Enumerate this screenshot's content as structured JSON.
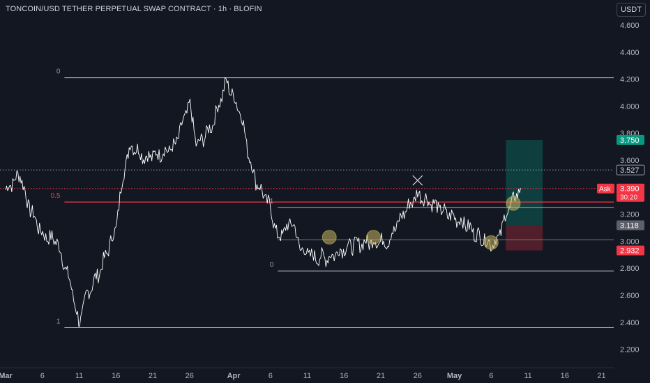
{
  "header": {
    "title": "TONCOIN/USD TETHER PERPETUAL SWAP CONTRACT · 1h · BLOFIN",
    "currency_button": "USDT"
  },
  "colors": {
    "background": "#131722",
    "price_line": "#ffffff",
    "level_line": "#b2b5be",
    "half_level": "#f23645",
    "take_profit": "#089981",
    "stop_loss": "#f23645",
    "ask": "#f23645",
    "highlight_circle": "#c8b560"
  },
  "chart_data": {
    "type": "line",
    "ylim": [
      2.15,
      4.7
    ],
    "y_ticks": [
      "4.600",
      "4.400",
      "4.200",
      "4.000",
      "3.800",
      "3.600",
      "3.400",
      "3.200",
      "3.000",
      "2.800",
      "2.600",
      "2.400",
      "2.200"
    ],
    "x_ticks": [
      "Mar",
      "6",
      "11",
      "16",
      "21",
      "26",
      "Apr",
      "6",
      "11",
      "16",
      "21",
      "26",
      "May",
      "6",
      "11",
      "16",
      "21"
    ],
    "x_ticks_bold": [
      "Mar",
      "Apr",
      "May"
    ],
    "price_series": {
      "x_start": "Mar 1",
      "x_end": "May 10",
      "anchors": [
        [
          "Mar 1",
          3.38
        ],
        [
          "Mar 3",
          3.5
        ],
        [
          "Mar 4",
          3.28
        ],
        [
          "Mar 6",
          3.05
        ],
        [
          "Mar 8",
          3.0
        ],
        [
          "Mar 10",
          2.65
        ],
        [
          "Mar 11",
          2.38
        ],
        [
          "Mar 12",
          2.6
        ],
        [
          "Mar 14",
          2.8
        ],
        [
          "Mar 16",
          3.1
        ],
        [
          "Mar 17",
          3.5
        ],
        [
          "Mar 18",
          3.72
        ],
        [
          "Mar 20",
          3.62
        ],
        [
          "Mar 22",
          3.65
        ],
        [
          "Mar 24",
          3.7
        ],
        [
          "Mar 26",
          4.02
        ],
        [
          "Mar 27",
          3.7
        ],
        [
          "Mar 29",
          3.85
        ],
        [
          "Mar 31",
          4.18
        ],
        [
          "Apr 2",
          3.95
        ],
        [
          "Apr 3",
          3.65
        ],
        [
          "Apr 4",
          3.45
        ],
        [
          "Apr 6",
          3.25
        ],
        [
          "Apr 7",
          3.02
        ],
        [
          "Apr 9",
          3.15
        ],
        [
          "Apr 10",
          2.95
        ],
        [
          "Apr 12",
          2.88
        ],
        [
          "Apr 14",
          2.88
        ],
        [
          "Apr 16",
          2.95
        ],
        [
          "Apr 18",
          2.98
        ],
        [
          "Apr 20",
          3.0
        ],
        [
          "Apr 22",
          3.0
        ],
        [
          "Apr 24",
          3.2
        ],
        [
          "Apr 26",
          3.35
        ],
        [
          "Apr 28",
          3.28
        ],
        [
          "Apr 30",
          3.2
        ],
        [
          "May 2",
          3.15
        ],
        [
          "May 4",
          3.05
        ],
        [
          "May 6",
          2.98
        ],
        [
          "May 7",
          3.02
        ],
        [
          "May 8",
          3.2
        ],
        [
          "May 9",
          3.3
        ],
        [
          "May 10",
          3.4
        ]
      ]
    },
    "fibonacci_range_1": {
      "levels": [
        [
          "0",
          4.21
        ],
        [
          "0.5",
          3.29
        ],
        [
          "1",
          2.36
        ]
      ],
      "from": "Mar 9",
      "to": "May 20"
    },
    "fibonacci_range_2": {
      "levels": [
        [
          "1",
          3.25
        ],
        [
          "0",
          2.78
        ]
      ],
      "from": "Apr 7",
      "to": "May 20"
    },
    "support_line": {
      "value": 3.01,
      "from": "Apr 7",
      "to": "May 20"
    },
    "dotted_level": {
      "value": 3.527,
      "label": "3.527"
    },
    "position": {
      "entry": 3.118,
      "entry_label": "3.118",
      "target": 3.75,
      "target_label": "3.750",
      "stop": 2.932,
      "stop_label": "2.932",
      "from": "May 8",
      "to": "May 13"
    },
    "ask": {
      "value": 3.39,
      "label": "3.390",
      "tag": "Ask",
      "countdown": "30:20"
    },
    "highlight_circles": [
      [
        "Apr 14",
        3.03
      ],
      [
        "Apr 20",
        3.03
      ],
      [
        "May 6",
        2.99
      ],
      [
        "May 9",
        3.28
      ]
    ],
    "cross_marker": [
      "Apr 26",
      3.45
    ]
  }
}
